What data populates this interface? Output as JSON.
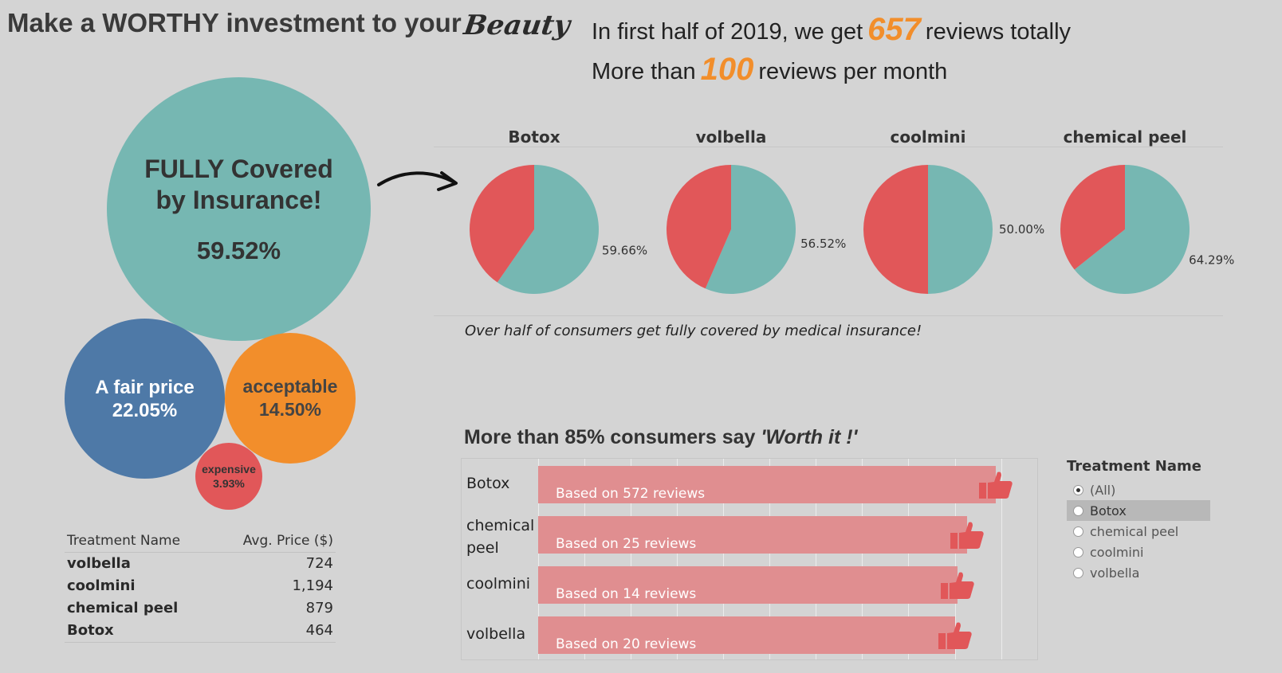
{
  "header": {
    "title": "Make a WORTHY investment to your",
    "title_accent": "Beauty",
    "line1_prefix": "In first half of 2019, we get",
    "line1_number": "657",
    "line1_suffix": "reviews totally",
    "line2_prefix": "More than",
    "line2_number": "100",
    "line2_suffix": "reviews per month"
  },
  "colors": {
    "teal": "#76b7b2",
    "red": "#e15759",
    "blue": "#4e79a7",
    "orange": "#f28e2b",
    "bar": "#e08e90",
    "background": "#d4d4d4"
  },
  "bubbles": {
    "full": {
      "label": "FULLY Covered by Insurance!",
      "pct": "59.52%"
    },
    "fair": {
      "label": "A fair price",
      "pct": "22.05%"
    },
    "acceptable": {
      "label": "acceptable",
      "pct": "14.50%"
    },
    "expensive": {
      "label": "expensive",
      "pct": "3.93%"
    }
  },
  "price_table": {
    "col_name": "Treatment Name",
    "col_price": "Avg. Price ($)",
    "rows": [
      {
        "name": "volbella",
        "price": "724"
      },
      {
        "name": "coolmini",
        "price": "1,194"
      },
      {
        "name": "chemical peel",
        "price": "879"
      },
      {
        "name": "Botox",
        "price": "464"
      }
    ]
  },
  "pie_note": "Over half of consumers get fully covered by medical insurance!",
  "bar_section": {
    "title_prefix": "More than 85% consumers say",
    "title_quote": "'Worth it !'"
  },
  "filter": {
    "title": "Treatment Name",
    "options": [
      {
        "label": "(All)",
        "selected": true
      },
      {
        "label": "Botox",
        "selected": false
      },
      {
        "label": "chemical peel",
        "selected": false
      },
      {
        "label": "coolmini",
        "selected": false
      },
      {
        "label": "volbella",
        "selected": false
      }
    ]
  },
  "chart_data": [
    {
      "type": "pie",
      "panels": [
        {
          "name": "Botox",
          "slices": [
            {
              "label": "59.66%",
              "value": 59.66,
              "color": "#76b7b2"
            },
            {
              "label": "",
              "value": 40.34,
              "color": "#e15759"
            }
          ]
        },
        {
          "name": "volbella",
          "slices": [
            {
              "label": "56.52%",
              "value": 56.52,
              "color": "#76b7b2"
            },
            {
              "label": "",
              "value": 43.48,
              "color": "#e15759"
            }
          ]
        },
        {
          "name": "coolmini",
          "slices": [
            {
              "label": "50.00%",
              "value": 50.0,
              "color": "#76b7b2"
            },
            {
              "label": "",
              "value": 50.0,
              "color": "#e15759"
            }
          ]
        },
        {
          "name": "chemical peel",
          "slices": [
            {
              "label": "64.29%",
              "value": 64.29,
              "color": "#76b7b2"
            },
            {
              "label": "",
              "value": 35.71,
              "color": "#e15759"
            }
          ]
        }
      ]
    },
    {
      "type": "bar",
      "orientation": "horizontal",
      "categories": [
        "Botox",
        "chemical peel",
        "coolmini",
        "volbella"
      ],
      "values": [
        96,
        90,
        88,
        87.5
      ],
      "bar_labels": [
        "Based on 572 reviews",
        "Based on 25 reviews",
        "Based on 14 reviews",
        "Based on 20 reviews"
      ],
      "xlim": [
        0,
        100
      ],
      "grid": true
    }
  ]
}
